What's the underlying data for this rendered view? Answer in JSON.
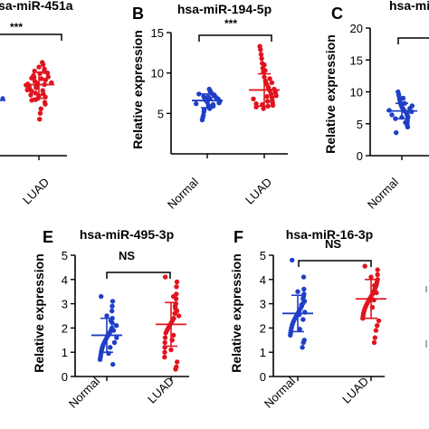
{
  "colors": {
    "normal": "#1f3fc6",
    "luad": "#e0141e",
    "axis": "#000000",
    "bar": "#000000"
  },
  "chart_data": [
    {
      "type": "scatter",
      "panel_letter": "",
      "title": "hsa-miR-451a",
      "significance": "***",
      "ylabel": "",
      "yticks": [],
      "ylim": [
        0,
        20
      ],
      "categories": [
        "LUAD"
      ],
      "grid": false,
      "series": [
        {
          "name": "LUAD",
          "values": [
            10.8,
            11.2,
            12.1,
            13.3,
            14.0,
            14.3,
            9.5,
            10.0,
            11.8,
            12.6,
            9.2,
            8.8,
            10.6,
            11.4,
            12.0,
            13.0,
            9.9,
            10.3,
            11.0,
            8.5,
            7.9,
            8.2,
            9.0,
            12.9,
            11.6,
            10.9,
            7.2,
            6.5,
            5.6,
            13.6,
            11.1,
            10.4,
            9.6,
            8.6,
            12.3,
            11.9,
            10.7,
            9.3,
            10.1,
            12.7
          ],
          "mean": 10.9,
          "sd_low": 8.8,
          "sd_high": 12.8
        }
      ],
      "normal_bar_stub": 8.5
    },
    {
      "type": "scatter",
      "panel_letter": "B",
      "title": "hsa-miR-194-5p",
      "significance": "***",
      "ylabel": "Relative expression",
      "yticks": [
        5,
        10,
        15
      ],
      "ylim": [
        0,
        15
      ],
      "categories": [
        "Normal",
        "LUAD"
      ],
      "grid": false,
      "series": [
        {
          "name": "Normal",
          "values": [
            6.2,
            6.5,
            6.8,
            7.0,
            7.2,
            7.5,
            7.8,
            8.0,
            5.8,
            6.0,
            6.4,
            6.6,
            6.9,
            7.1,
            5.5,
            5.2,
            4.8,
            4.5,
            4.2,
            7.4,
            6.3,
            6.7,
            7.3,
            5.9,
            6.1,
            7.7,
            5.6,
            6.8,
            7.0,
            6.5
          ],
          "mean": 6.6,
          "sd_low": 5.7,
          "sd_high": 7.4
        },
        {
          "name": "LUAD",
          "values": [
            5.8,
            6.0,
            6.3,
            6.6,
            7.0,
            7.4,
            7.8,
            8.2,
            8.6,
            9.0,
            9.5,
            10.1,
            10.6,
            11.2,
            11.8,
            12.3,
            12.9,
            13.3,
            6.2,
            6.8,
            7.2,
            7.6,
            8.0,
            8.8,
            9.3,
            5.9,
            6.5,
            7.1,
            10.3,
            11.0,
            5.6,
            6.1
          ],
          "mean": 7.9,
          "sd_low": 5.9,
          "sd_high": 9.9
        }
      ]
    },
    {
      "type": "scatter",
      "panel_letter": "C",
      "title": "hsa-mi",
      "significance": "",
      "ylabel": "Relative expression",
      "yticks": [
        0,
        5,
        10,
        15,
        20
      ],
      "ylim": [
        0,
        20
      ],
      "categories": [
        "Normal"
      ],
      "grid": false,
      "series": [
        {
          "name": "Normal",
          "values": [
            3.6,
            4.5,
            5.0,
            5.5,
            6.0,
            6.2,
            6.5,
            6.8,
            7.0,
            7.3,
            7.6,
            8.0,
            8.4,
            8.8,
            9.2,
            9.6,
            10.0,
            5.8,
            6.4,
            7.1,
            7.8,
            4.8,
            6.9,
            7.4,
            5.2,
            6.6,
            8.2,
            9.0,
            7.2,
            6.0
          ],
          "mean": 7.0,
          "sd_low": 5.8,
          "sd_high": 8.2
        }
      ]
    },
    {
      "type": "scatter",
      "panel_letter": "E",
      "title": "hsa-miR-495-3p",
      "significance": "NS",
      "ylabel": "Relative expression",
      "yticks": [
        0,
        1,
        2,
        3,
        4,
        5
      ],
      "ylim": [
        0,
        5
      ],
      "categories": [
        "Normal",
        "LUAD"
      ],
      "grid": false,
      "series": [
        {
          "name": "Normal",
          "values": [
            3.3,
            3.1,
            2.9,
            2.7,
            2.4,
            2.2,
            2.0,
            1.9,
            1.8,
            1.7,
            1.6,
            1.5,
            1.4,
            1.3,
            1.2,
            1.1,
            1.0,
            0.9,
            0.8,
            0.7,
            0.5,
            2.1,
            1.6,
            1.4,
            1.9,
            2.3,
            1.2,
            0.95,
            1.75,
            2.5
          ],
          "mean": 1.7,
          "sd_low": 1.0,
          "sd_high": 2.4
        },
        {
          "name": "LUAD",
          "values": [
            4.1,
            3.9,
            3.7,
            3.4,
            3.2,
            3.0,
            2.8,
            2.6,
            2.4,
            2.3,
            2.2,
            2.1,
            2.0,
            1.9,
            1.8,
            1.6,
            1.4,
            1.2,
            1.0,
            0.8,
            0.6,
            0.4,
            0.3,
            2.5,
            2.7,
            2.9,
            3.3,
            1.7,
            1.5,
            1.1
          ],
          "mean": 2.15,
          "sd_low": 1.25,
          "sd_high": 3.05
        }
      ]
    },
    {
      "type": "scatter",
      "panel_letter": "F",
      "title": "hsa-miR-16-3p",
      "significance": "NS",
      "ylabel": "Relative expression",
      "yticks": [
        0,
        1,
        2,
        3,
        4,
        5
      ],
      "ylim": [
        0,
        5
      ],
      "categories": [
        "Normal",
        "LUAD"
      ],
      "grid": false,
      "series": [
        {
          "name": "Normal",
          "values": [
            4.8,
            4.1,
            3.6,
            3.4,
            3.3,
            3.2,
            3.0,
            2.9,
            2.8,
            2.7,
            2.6,
            2.5,
            2.4,
            2.3,
            2.2,
            2.1,
            2.0,
            1.9,
            1.8,
            1.7,
            1.5,
            1.4,
            1.2,
            3.1,
            2.65,
            2.35,
            2.95,
            1.95,
            2.55,
            3.5
          ],
          "mean": 2.6,
          "sd_low": 1.85,
          "sd_high": 3.35
        },
        {
          "name": "LUAD",
          "values": [
            4.55,
            4.4,
            4.2,
            4.0,
            3.9,
            3.8,
            3.7,
            3.6,
            3.5,
            3.4,
            3.3,
            3.2,
            3.1,
            3.0,
            2.9,
            2.8,
            2.7,
            2.6,
            2.5,
            2.4,
            2.3,
            2.1,
            1.9,
            1.6,
            1.4,
            3.45,
            3.75,
            3.15,
            2.85,
            4.1
          ],
          "mean": 3.2,
          "sd_low": 2.4,
          "sd_high": 4.0
        }
      ]
    }
  ]
}
